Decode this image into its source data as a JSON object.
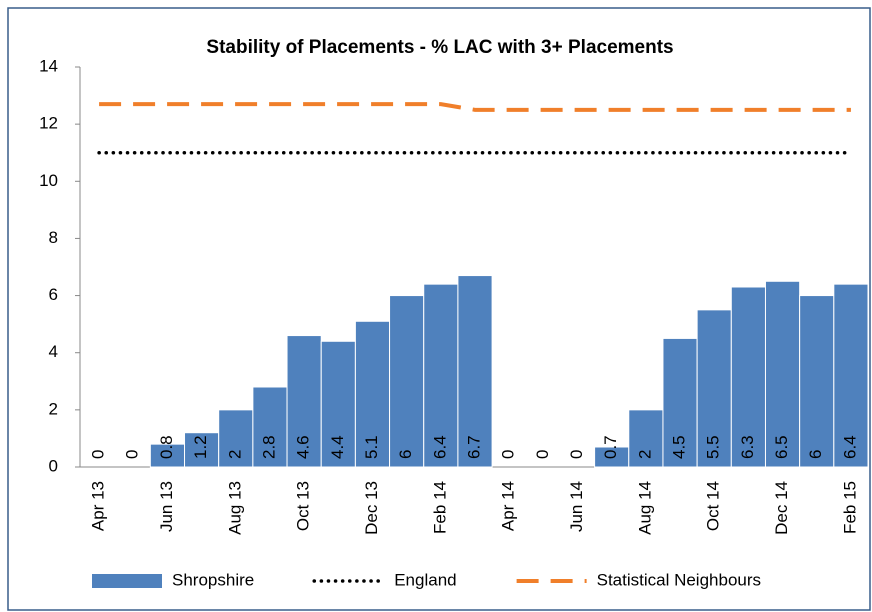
{
  "chart_data": {
    "type": "bar",
    "title": "Stability of Placements - % LAC with 3+ Placements",
    "categories": [
      "Apr 13",
      null,
      "Jun 13",
      null,
      "Aug 13",
      null,
      "Oct 13",
      null,
      "Dec 13",
      null,
      "Feb 14",
      null,
      "Apr 14",
      null,
      "Jun 14",
      null,
      "Aug 14",
      null,
      "Oct 14",
      null,
      "Dec 14",
      null,
      "Feb 15"
    ],
    "series": [
      {
        "name": "Shropshire",
        "type": "bar",
        "color": "#4f81bd",
        "values": [
          0,
          0,
          0.8,
          1.2,
          2,
          2.8,
          4.6,
          4.4,
          5.1,
          6,
          6.4,
          6.7,
          0,
          0,
          0,
          0.7,
          2,
          4.5,
          5.5,
          6.3,
          6.5,
          6,
          6.4
        ]
      },
      {
        "name": "England",
        "type": "line",
        "style": "dotted",
        "color": "#000000",
        "values": [
          11,
          11,
          11,
          11,
          11,
          11,
          11,
          11,
          11,
          11,
          11,
          11,
          11,
          11,
          11,
          11,
          11,
          11,
          11,
          11,
          11,
          11,
          11
        ]
      },
      {
        "name": "Statistical Neighbours",
        "type": "line",
        "style": "dashed",
        "color": "#f07f2a",
        "values": [
          12.7,
          12.7,
          12.7,
          12.7,
          12.7,
          12.7,
          12.7,
          12.7,
          12.7,
          12.7,
          12.7,
          12.5,
          12.5,
          12.5,
          12.5,
          12.5,
          12.5,
          12.5,
          12.5,
          12.5,
          12.5,
          12.5,
          12.5
        ]
      }
    ],
    "ylim": [
      0,
      14
    ],
    "yticks": [
      0,
      2,
      4,
      6,
      8,
      10,
      12,
      14
    ],
    "grid": false,
    "legend": "bottom"
  }
}
